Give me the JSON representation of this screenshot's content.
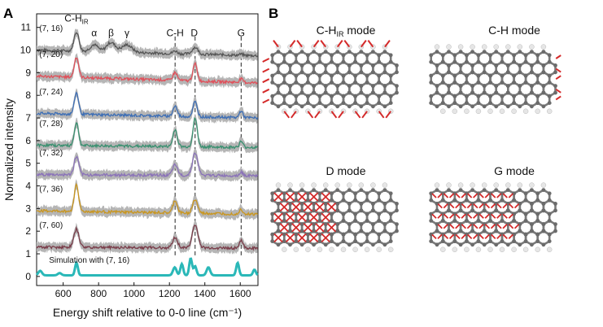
{
  "figure": {
    "panel_a_label": "A",
    "panel_b_label": "B",
    "mode_titles": [
      "C-Hᴵᴿ mode",
      "C-H mode",
      "D mode",
      "G mode"
    ],
    "mode_title_parts": [
      {
        "base": "C-H",
        "sub": "IR",
        "rest": " mode"
      },
      {
        "base": "C-H mode",
        "sub": "",
        "rest": ""
      },
      {
        "base": "D mode",
        "sub": "",
        "rest": ""
      },
      {
        "base": "G mode",
        "sub": "",
        "rest": ""
      }
    ]
  },
  "chart_data": {
    "type": "line",
    "title": "",
    "xlabel": "Energy shift relative to 0-0 line (cm⁻¹)",
    "ylabel": "Normalized intensity",
    "xlim": [
      450,
      1700
    ],
    "ylim": [
      -0.4,
      11.6
    ],
    "xticks": [
      600,
      800,
      1000,
      1200,
      1400,
      1600
    ],
    "yticks": [
      0,
      1,
      2,
      3,
      4,
      5,
      6,
      7,
      8,
      9,
      10,
      11
    ],
    "peak_annotations": [
      {
        "label": "C-H",
        "sub": "IR",
        "x": 675,
        "y": 11.4
      },
      {
        "label": "α",
        "x": 775,
        "y": 10.75
      },
      {
        "label": "β",
        "x": 870,
        "y": 10.75
      },
      {
        "label": "γ",
        "x": 960,
        "y": 10.75
      },
      {
        "label": "C-H",
        "sub": "",
        "x": 1232,
        "y": 10.75
      },
      {
        "label": "D",
        "x": 1340,
        "y": 10.75
      },
      {
        "label": "G",
        "x": 1605,
        "y": 10.75
      }
    ],
    "dashed_lines_x": [
      1232,
      1345,
      1605
    ],
    "series": [
      {
        "name": "(7, 16)",
        "offset": 10.0,
        "color": "#555555",
        "peaks": [
          [
            675,
            0.85,
            14
          ],
          [
            775,
            0.3,
            22
          ],
          [
            870,
            0.42,
            25
          ],
          [
            960,
            0.33,
            28
          ],
          [
            1232,
            0.12,
            12
          ],
          [
            1345,
            0.3,
            16
          ],
          [
            1605,
            0.05,
            10
          ]
        ],
        "tilt": -0.25
      },
      {
        "name": "(7, 20)",
        "offset": 8.85,
        "color": "#e0505a",
        "peaks": [
          [
            675,
            0.9,
            12
          ],
          [
            1232,
            0.35,
            12
          ],
          [
            1345,
            0.75,
            12
          ],
          [
            1605,
            0.15,
            10
          ]
        ],
        "tilt": -0.3
      },
      {
        "name": "(7, 24)",
        "offset": 7.2,
        "color": "#3d6eb5",
        "peaks": [
          [
            675,
            0.95,
            12
          ],
          [
            1232,
            0.45,
            12
          ],
          [
            1345,
            0.65,
            12
          ],
          [
            1605,
            0.3,
            10
          ]
        ],
        "tilt": -0.2
      },
      {
        "name": "(7, 28)",
        "offset": 5.8,
        "color": "#3a9070",
        "peaks": [
          [
            675,
            1.0,
            12
          ],
          [
            1232,
            0.75,
            12
          ],
          [
            1345,
            1.25,
            12
          ],
          [
            1605,
            0.25,
            10
          ]
        ],
        "tilt": -0.1
      },
      {
        "name": "(7, 32)",
        "offset": 4.5,
        "color": "#8a72b8",
        "peaks": [
          [
            675,
            0.8,
            13
          ],
          [
            1232,
            0.45,
            14
          ],
          [
            1345,
            1.0,
            15
          ],
          [
            1605,
            0.15,
            10
          ]
        ],
        "tilt": -0.05
      },
      {
        "name": "(7, 36)",
        "offset": 2.9,
        "color": "#c9961f",
        "peaks": [
          [
            675,
            1.2,
            12
          ],
          [
            1232,
            0.55,
            12
          ],
          [
            1345,
            0.6,
            14
          ],
          [
            1605,
            0.2,
            10
          ]
        ],
        "tilt": -0.15
      },
      {
        "name": "(7, 60)",
        "offset": 1.3,
        "color": "#7a3d4a",
        "peaks": [
          [
            675,
            0.8,
            14
          ],
          [
            1232,
            0.45,
            14
          ],
          [
            1345,
            1.0,
            16
          ],
          [
            1605,
            0.35,
            10
          ]
        ],
        "tilt": -0.05
      },
      {
        "name": "Simulation with (7, 16)",
        "offset": 0.05,
        "color": "#2ab8b8",
        "peaks": [
          [
            470,
            0.2,
            10
          ],
          [
            580,
            0.1,
            10
          ],
          [
            675,
            0.55,
            8
          ],
          [
            1230,
            0.35,
            10
          ],
          [
            1270,
            0.5,
            8
          ],
          [
            1320,
            0.75,
            8
          ],
          [
            1345,
            0.4,
            8
          ],
          [
            1420,
            0.35,
            10
          ],
          [
            1585,
            0.55,
            8
          ],
          [
            1680,
            0.25,
            8
          ]
        ],
        "tilt": 0.0
      }
    ]
  }
}
